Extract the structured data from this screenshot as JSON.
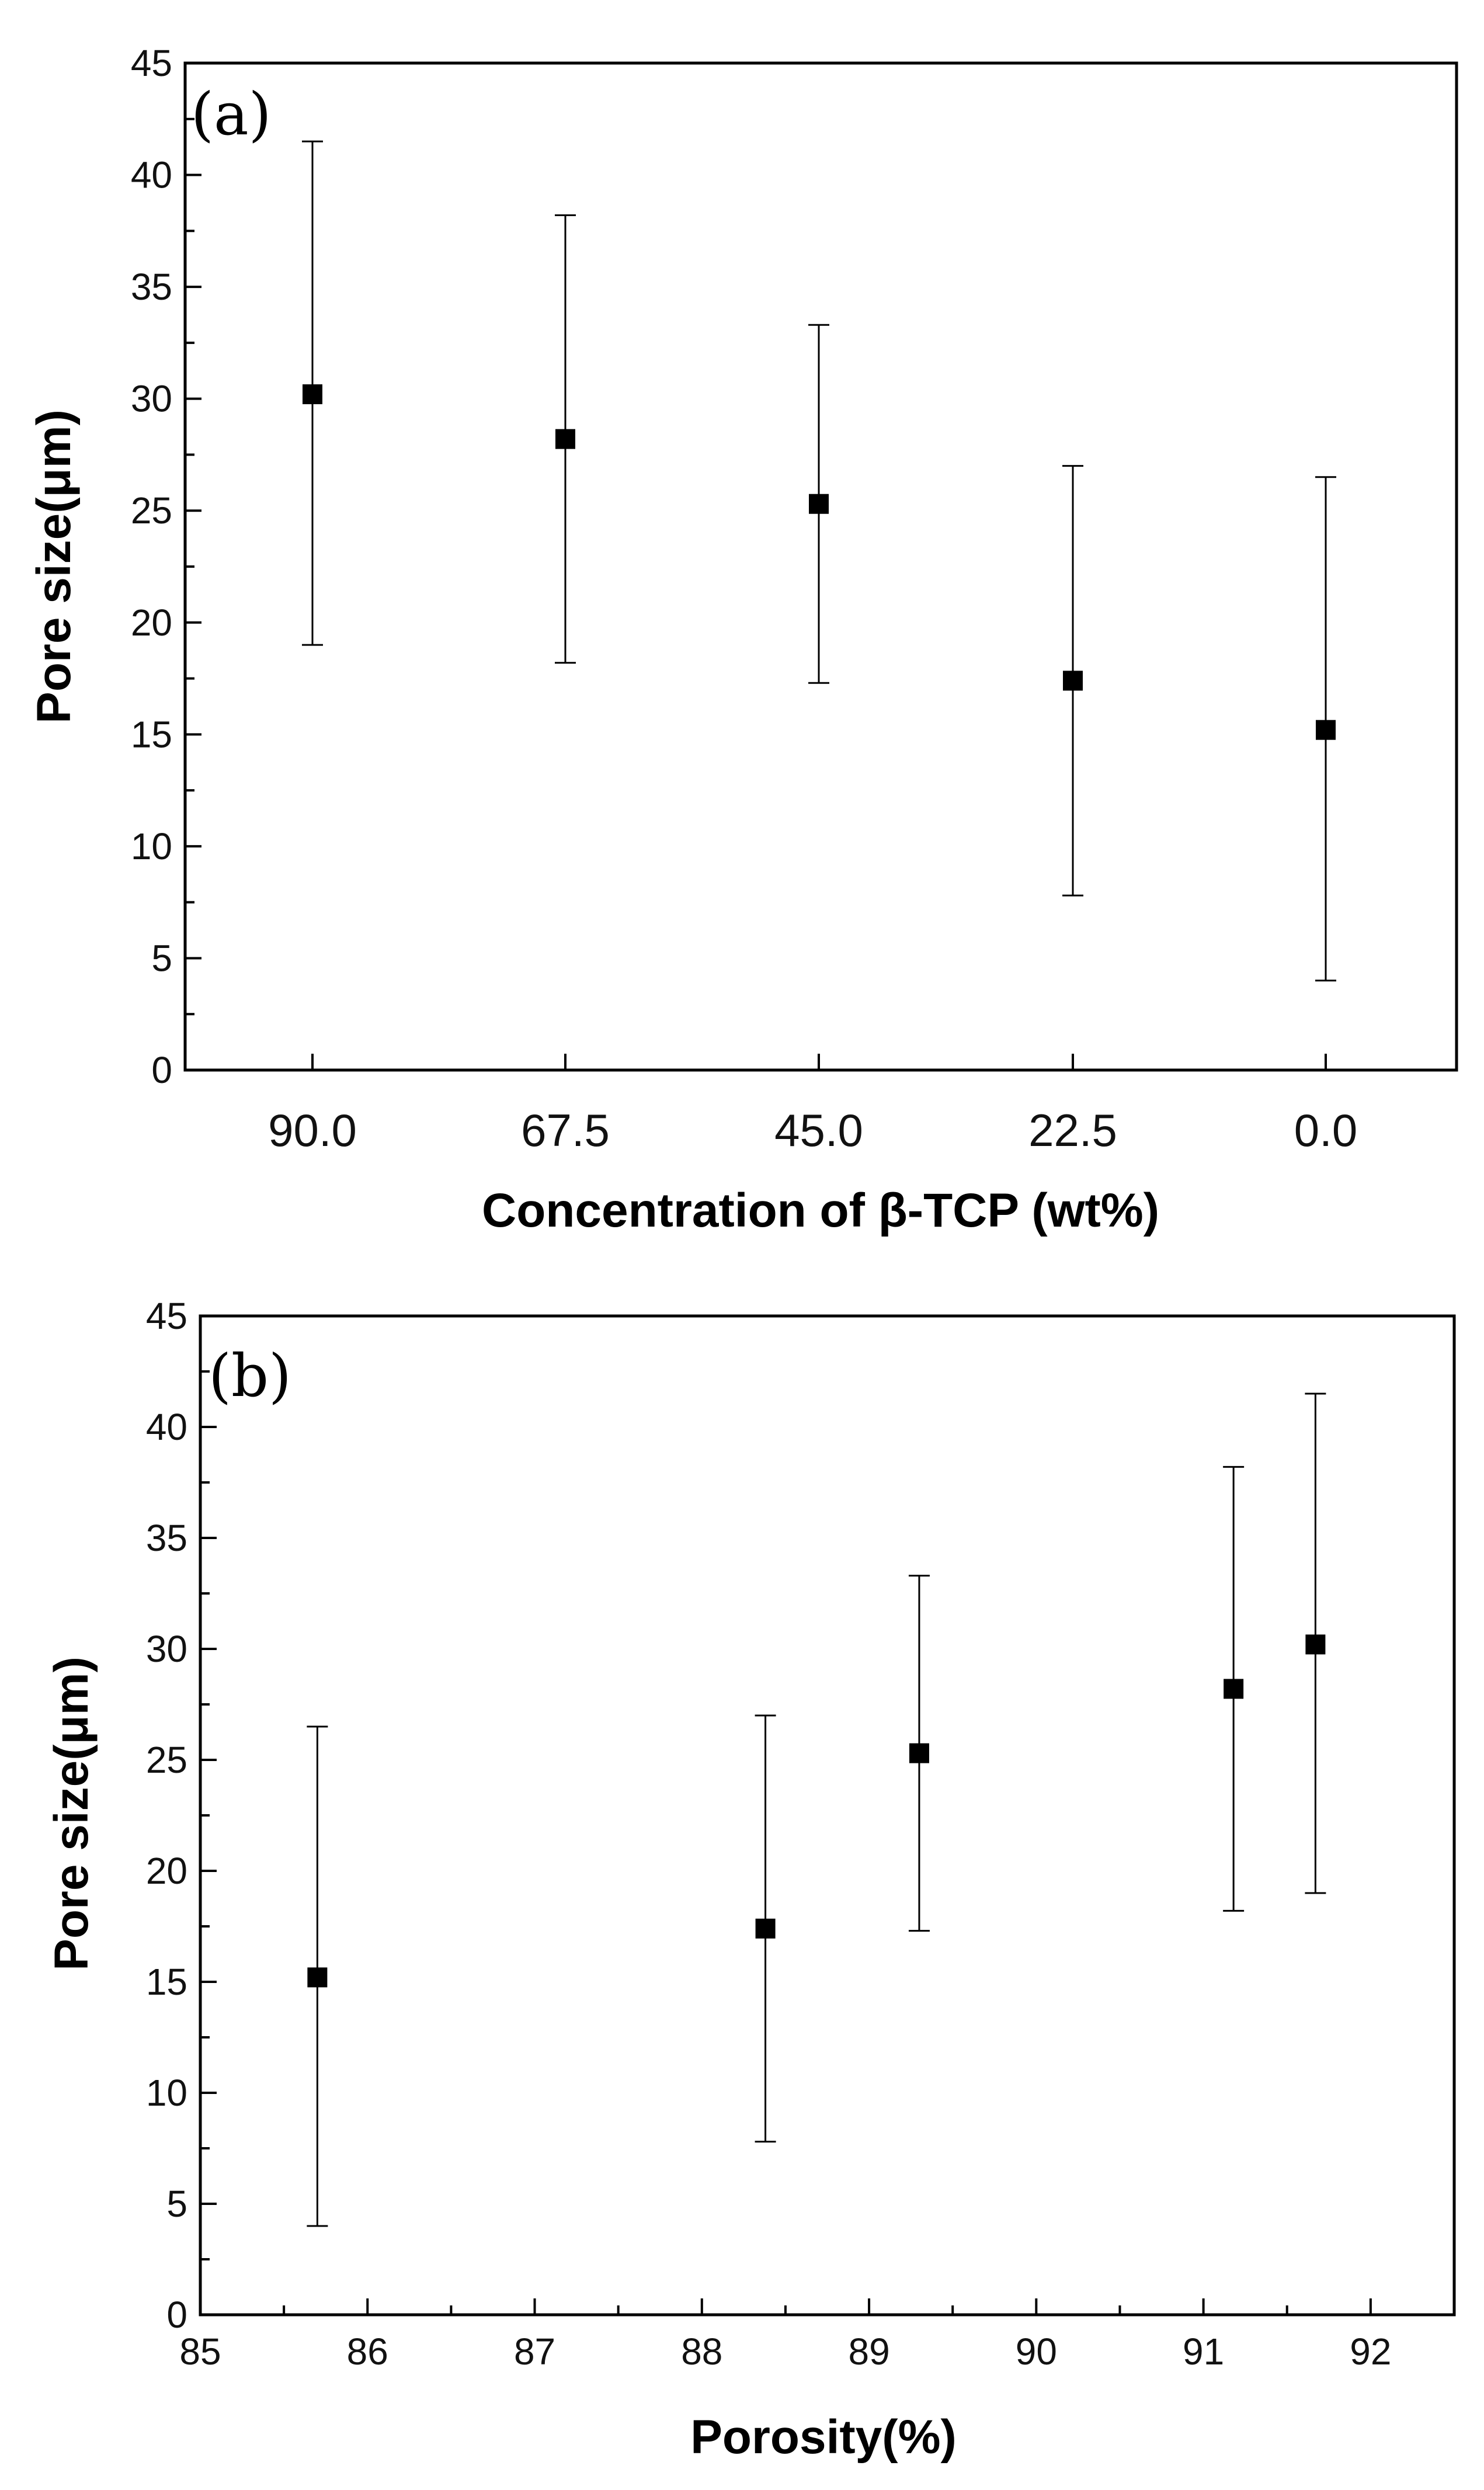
{
  "chart_data": [
    {
      "id": "a",
      "type": "scatter",
      "panel_label": "(a)",
      "title": "",
      "xlabel": "Concentration of β-TCP (wt%)",
      "ylabel": "Pore size(μm)",
      "categories": [
        "90.0",
        "67.5",
        "45.0",
        "22.5",
        "0.0"
      ],
      "values": [
        30.2,
        28.2,
        25.3,
        17.4,
        15.2
      ],
      "error_low": [
        19.0,
        18.2,
        17.3,
        7.8,
        4.0
      ],
      "error_high": [
        41.5,
        38.2,
        33.3,
        27.0,
        26.5
      ],
      "ylim": [
        0,
        45
      ],
      "yticks": [
        0,
        5,
        10,
        15,
        20,
        25,
        30,
        35,
        40,
        45
      ],
      "grid": false,
      "legend": "none"
    },
    {
      "id": "b",
      "type": "scatter",
      "panel_label": "(b)",
      "title": "",
      "xlabel": "Porosity(%)",
      "ylabel": "Pore size(μm)",
      "x": [
        85.7,
        88.38,
        89.3,
        91.18,
        91.67
      ],
      "values": [
        15.2,
        17.4,
        25.3,
        28.2,
        30.2
      ],
      "error_low": [
        4.0,
        7.8,
        17.3,
        18.2,
        19.0
      ],
      "error_high": [
        26.5,
        27.0,
        33.3,
        38.2,
        41.5
      ],
      "xlim": [
        85,
        92.5
      ],
      "xticks": [
        85,
        86,
        87,
        88,
        89,
        90,
        91,
        92
      ],
      "ylim": [
        0,
        45
      ],
      "yticks": [
        0,
        5,
        10,
        15,
        20,
        25,
        30,
        35,
        40,
        45
      ],
      "grid": false,
      "legend": "none"
    }
  ]
}
